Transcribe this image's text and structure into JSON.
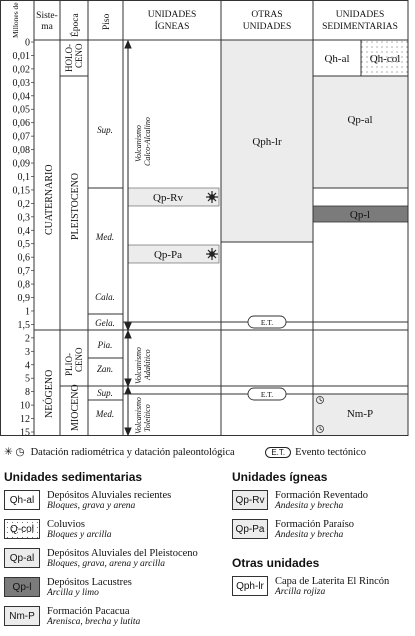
{
  "header": {
    "millones": "Millones de años",
    "sistema": "Sistema",
    "epoca": "Época",
    "piso": "Piso",
    "unidades_igneas": [
      "UNIDADES",
      "ÍGNEAS"
    ],
    "otras_unidades": [
      "OTRAS",
      "UNIDADES"
    ],
    "unidades_sedimentarias": [
      "UNIDADES",
      "SEDIMENTARIAS"
    ]
  },
  "age_labels": [
    "0",
    "0,01",
    "0,02",
    "0,03",
    "0,04",
    "0,05",
    "0,06",
    "0,07",
    "0,08",
    "0,09",
    "0,1",
    "0,15",
    "0,2",
    "0,3",
    "0,4",
    "0,5",
    "0,6",
    "0,7",
    "0,8",
    "0,9",
    "1",
    "1,5",
    "2",
    "3",
    "4",
    "5",
    "8",
    "10",
    "12",
    "15"
  ],
  "systems": {
    "cuaternario": "CUATERNARIO",
    "neogeno": "NEÓGENO"
  },
  "epochs": {
    "holoceno": [
      "HOLO-",
      "CENO"
    ],
    "pleistoceno": "PLEISTOCENO",
    "plioceno": [
      "PLIO-",
      "CENO"
    ],
    "mioceno": "MIOCENO"
  },
  "stages": {
    "sup": "Sup.",
    "med": "Med.",
    "cala": "Cala.",
    "gela": "Gela.",
    "pia": "Pia.",
    "zan": "Zan.",
    "sup2": "Sup.",
    "med2": "Med."
  },
  "volcanism": {
    "calco": [
      "Volcanismo",
      "Calco-Alcalino"
    ],
    "adakitico": [
      "Volcanismo",
      "Adakítico"
    ],
    "toleitico": [
      "Volcanismo",
      "Toleítico"
    ]
  },
  "units": {
    "qp_rv": "Qp-Rv",
    "qp_pa": "Qp-Pa",
    "qph_lr": "Qph-lr",
    "qh_al": "Qh-al",
    "qh_col": "Qh-col",
    "qp_al": "Qp-al",
    "qp_l": "Qp-l",
    "nm_p": "Nm-P",
    "et": "E.T."
  },
  "legend": {
    "dating": "Datación radiométrica y datación paleontológica",
    "evento": "Evento tectónico",
    "et": "E.T.",
    "sed_title": "Unidades sedimentarias",
    "ign_title": "Unidades ígneas",
    "otras_title": "Otras unidades",
    "sed": [
      {
        "code": "Qh-al",
        "name": "Depósitos Aluviales recientes",
        "sub": "Bloques, grava y arena"
      },
      {
        "code": "Q-col",
        "name": "Coluvios",
        "sub": "Bloques y arcilla"
      },
      {
        "code": "Qp-al",
        "name": "Depósitos Aluviales del Pleistoceno",
        "sub": "Bloques, grava, arena y arcilla"
      },
      {
        "code": "Qp-l",
        "name": "Depósitos Lacustres",
        "sub": "Arcilla y limo"
      },
      {
        "code": "Nm-P",
        "name": "Formación Pacacua",
        "sub": "Arenisca, brecha y lutita"
      }
    ],
    "ign": [
      {
        "code": "Qp-Rv",
        "name": "Formación Reventado",
        "sub": "Andesita y brecha"
      },
      {
        "code": "Qp-Pa",
        "name": "Formación Paraíso",
        "sub": "Andesita y brecha"
      }
    ],
    "otras": [
      {
        "code": "Qph-lr",
        "name": "Capa de Laterita El Rincón",
        "sub": "Arcilla rojiza"
      }
    ]
  },
  "colors": {
    "light_fill": "#ececec",
    "dark_fill": "#7b7b7b",
    "line": "#333333"
  },
  "icons": {
    "dating": "asterisk-circle-icon",
    "paleo": "clock-shell-icon"
  }
}
